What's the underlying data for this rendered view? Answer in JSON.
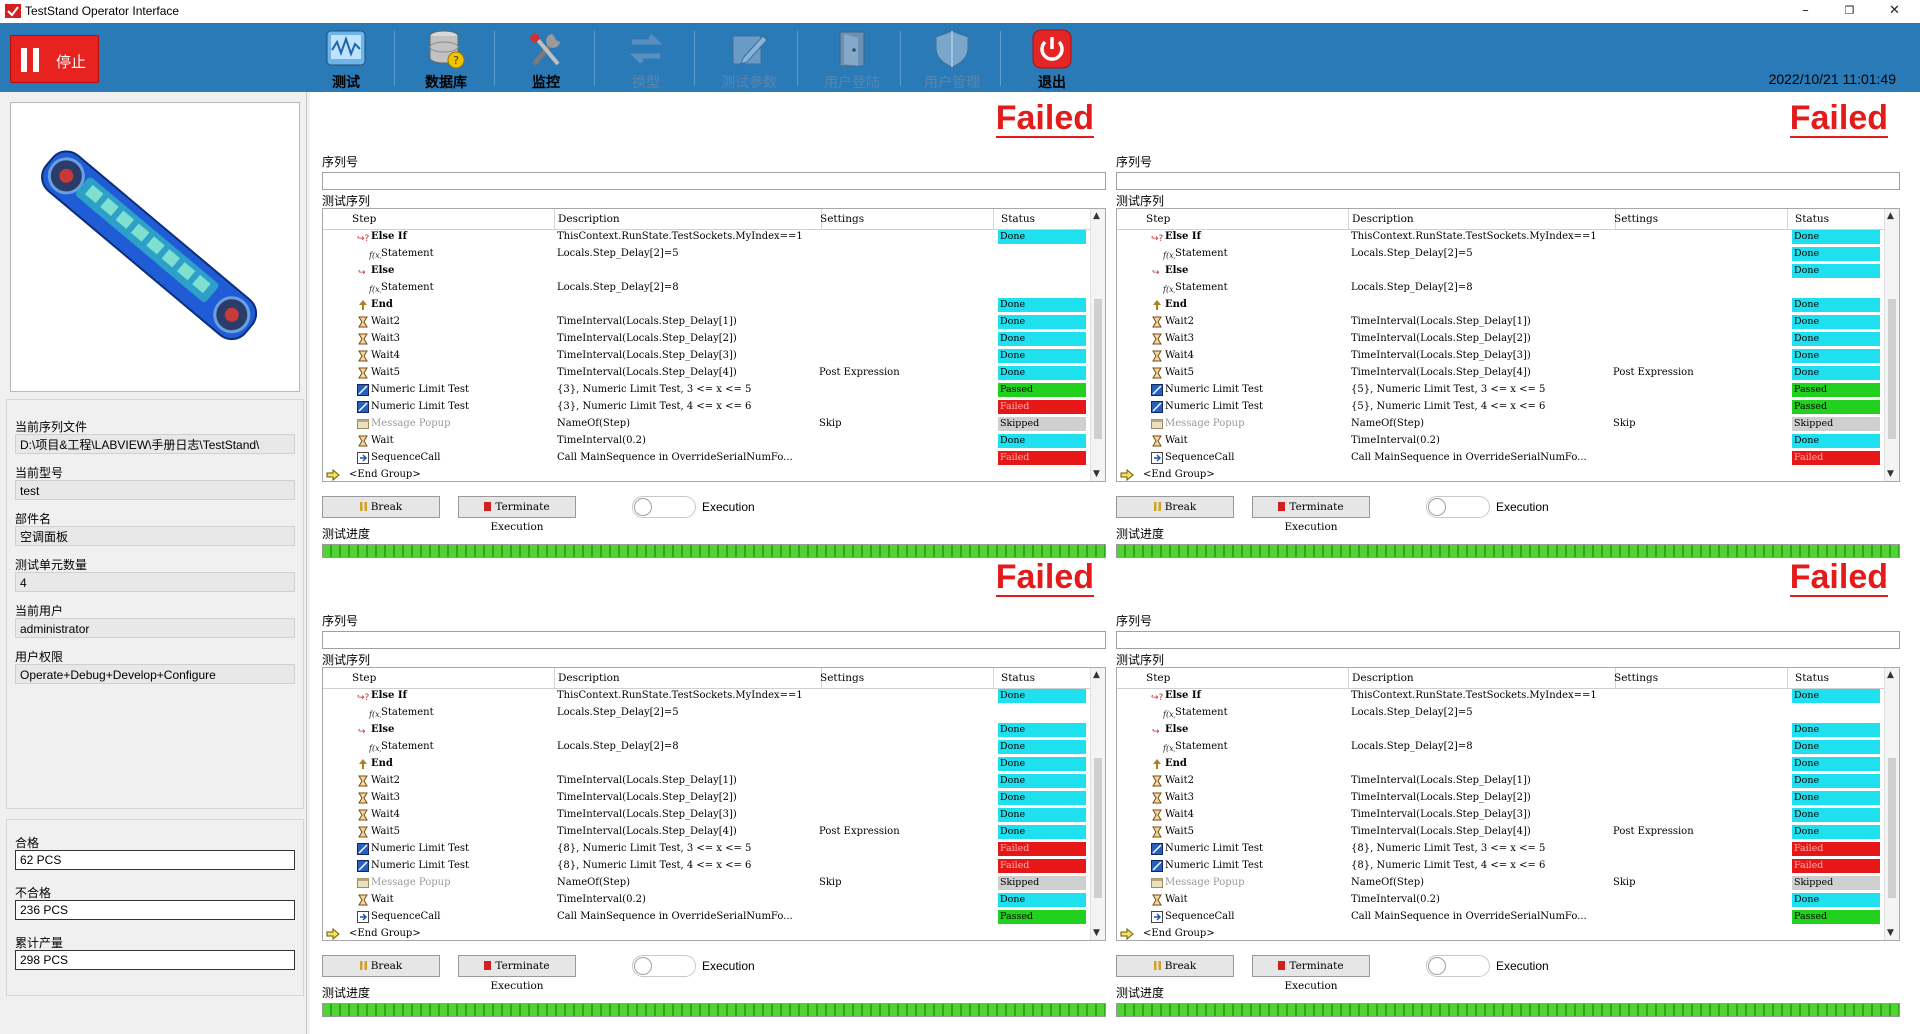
{
  "window": {
    "title": "TestStand Operator Interface",
    "minimize": "–",
    "restore": "❐",
    "close": "✕"
  },
  "toolbar": {
    "stop_label": "停止",
    "buttons": [
      {
        "label": "测试",
        "icon": "waveform-monitor-icon",
        "enabled": true
      },
      {
        "label": "数据库",
        "icon": "database-icon",
        "enabled": true
      },
      {
        "label": "监控",
        "icon": "tools-wrench-icon",
        "enabled": true
      },
      {
        "label": "换型",
        "icon": "swap-arrows-icon",
        "enabled": false
      },
      {
        "label": "测试参数",
        "icon": "edit-document-icon",
        "enabled": false
      },
      {
        "label": "用户登陆",
        "icon": "door-login-icon",
        "enabled": false
      },
      {
        "label": "用户管理",
        "icon": "shield-icon",
        "enabled": false
      },
      {
        "label": "退出",
        "icon": "power-icon",
        "enabled": true
      }
    ],
    "datetime": "2022/10/21 11:01:49"
  },
  "left": {
    "fields": [
      {
        "label": "当前序列文件",
        "value": "D:\\项目&工程\\LABVIEW\\手册日志\\TestStand\\"
      },
      {
        "label": "当前型号",
        "value": "test"
      },
      {
        "label": "部件名",
        "value": "空调面板"
      },
      {
        "label": "测试单元数量",
        "value": "4"
      },
      {
        "label": "当前用户",
        "value": "administrator"
      },
      {
        "label": "用户权限",
        "value": "Operate+Debug+Develop+Configure"
      }
    ],
    "counts": [
      {
        "label": "合格",
        "value": "62 PCS"
      },
      {
        "label": "不合格",
        "value": "236 PCS"
      },
      {
        "label": "累计产量",
        "value": "298 PCS"
      }
    ]
  },
  "colors": {
    "done": "#1ee0ee",
    "passed": "#22d11e",
    "failed": "#e61717",
    "skipped": "#cfcfcf",
    "failed_text": "#e31b1b",
    "toolbar": "#2a7ab8"
  },
  "labels": {
    "result": "Failed",
    "serial": "序列号",
    "sequence": "测试序列",
    "progress": "测试进度",
    "break": "Break",
    "terminate": "Terminate Execution",
    "execution": "Execution",
    "col_step": "Step",
    "col_desc": "Description",
    "col_settings": "Settings",
    "col_status": "Status"
  },
  "units": [
    {
      "rows": [
        {
          "step": "Else If",
          "icon": "else-if",
          "desc": "ThisContext.RunState.TestSockets.MyIndex==1",
          "settings": "",
          "status": "Done"
        },
        {
          "step": "Statement",
          "icon": "statement",
          "desc": "Locals.Step_Delay[2]=5",
          "settings": "",
          "status": ""
        },
        {
          "step": "Else",
          "icon": "else",
          "desc": "",
          "settings": "",
          "status": ""
        },
        {
          "step": "Statement",
          "icon": "statement",
          "desc": "Locals.Step_Delay[2]=8",
          "settings": "",
          "status": ""
        },
        {
          "step": "End",
          "icon": "end",
          "desc": "",
          "settings": "",
          "status": "Done"
        },
        {
          "step": "Wait2",
          "icon": "wait",
          "desc": "TimeInterval(Locals.Step_Delay[1])",
          "settings": "",
          "status": "Done"
        },
        {
          "step": "Wait3",
          "icon": "wait",
          "desc": "TimeInterval(Locals.Step_Delay[2])",
          "settings": "",
          "status": "Done"
        },
        {
          "step": "Wait4",
          "icon": "wait",
          "desc": "TimeInterval(Locals.Step_Delay[3])",
          "settings": "",
          "status": "Done"
        },
        {
          "step": "Wait5",
          "icon": "wait",
          "desc": "TimeInterval(Locals.Step_Delay[4])",
          "settings": "Post Expression",
          "status": "Done"
        },
        {
          "step": "Numeric Limit Test",
          "icon": "numeric",
          "desc": "{3}, Numeric Limit Test,  3 <= x <= 5",
          "settings": "",
          "status": "Passed"
        },
        {
          "step": "Numeric Limit Test",
          "icon": "numeric",
          "desc": "{3}, Numeric Limit Test,  4 <= x <= 6",
          "settings": "",
          "status": "Failed"
        },
        {
          "step": "Message Popup",
          "icon": "popup",
          "desc": "NameOf(Step)",
          "settings": "Skip",
          "status": "Skipped"
        },
        {
          "step": "Wait",
          "icon": "wait",
          "desc": "TimeInterval(0.2)",
          "settings": "",
          "status": "Done"
        },
        {
          "step": "SequenceCall",
          "icon": "seqcall",
          "desc": "Call MainSequence in OverrideSerialNumFo...",
          "settings": "",
          "status": "Failed"
        },
        {
          "step": "<End Group>",
          "icon": "endgroup",
          "desc": "",
          "settings": "",
          "status": ""
        }
      ]
    },
    {
      "rows": [
        {
          "step": "Else If",
          "icon": "else-if",
          "desc": "ThisContext.RunState.TestSockets.MyIndex==1",
          "settings": "",
          "status": "Done"
        },
        {
          "step": "Statement",
          "icon": "statement",
          "desc": "Locals.Step_Delay[2]=5",
          "settings": "",
          "status": "Done"
        },
        {
          "step": "Else",
          "icon": "else",
          "desc": "",
          "settings": "",
          "status": "Done"
        },
        {
          "step": "Statement",
          "icon": "statement",
          "desc": "Locals.Step_Delay[2]=8",
          "settings": "",
          "status": ""
        },
        {
          "step": "End",
          "icon": "end",
          "desc": "",
          "settings": "",
          "status": "Done"
        },
        {
          "step": "Wait2",
          "icon": "wait",
          "desc": "TimeInterval(Locals.Step_Delay[1])",
          "settings": "",
          "status": "Done"
        },
        {
          "step": "Wait3",
          "icon": "wait",
          "desc": "TimeInterval(Locals.Step_Delay[2])",
          "settings": "",
          "status": "Done"
        },
        {
          "step": "Wait4",
          "icon": "wait",
          "desc": "TimeInterval(Locals.Step_Delay[3])",
          "settings": "",
          "status": "Done"
        },
        {
          "step": "Wait5",
          "icon": "wait",
          "desc": "TimeInterval(Locals.Step_Delay[4])",
          "settings": "Post Expression",
          "status": "Done"
        },
        {
          "step": "Numeric Limit Test",
          "icon": "numeric",
          "desc": "{5}, Numeric Limit Test,  3 <= x <= 5",
          "settings": "",
          "status": "Passed"
        },
        {
          "step": "Numeric Limit Test",
          "icon": "numeric",
          "desc": "{5}, Numeric Limit Test,  4 <= x <= 6",
          "settings": "",
          "status": "Passed"
        },
        {
          "step": "Message Popup",
          "icon": "popup",
          "desc": "NameOf(Step)",
          "settings": "Skip",
          "status": "Skipped"
        },
        {
          "step": "Wait",
          "icon": "wait",
          "desc": "TimeInterval(0.2)",
          "settings": "",
          "status": "Done"
        },
        {
          "step": "SequenceCall",
          "icon": "seqcall",
          "desc": "Call MainSequence in OverrideSerialNumFo...",
          "settings": "",
          "status": "Failed"
        },
        {
          "step": "<End Group>",
          "icon": "endgroup",
          "desc": "",
          "settings": "",
          "status": ""
        }
      ]
    },
    {
      "rows": [
        {
          "step": "Else If",
          "icon": "else-if",
          "desc": "ThisContext.RunState.TestSockets.MyIndex==1",
          "settings": "",
          "status": "Done"
        },
        {
          "step": "Statement",
          "icon": "statement",
          "desc": "Locals.Step_Delay[2]=5",
          "settings": "",
          "status": ""
        },
        {
          "step": "Else",
          "icon": "else",
          "desc": "",
          "settings": "",
          "status": "Done"
        },
        {
          "step": "Statement",
          "icon": "statement",
          "desc": "Locals.Step_Delay[2]=8",
          "settings": "",
          "status": "Done"
        },
        {
          "step": "End",
          "icon": "end",
          "desc": "",
          "settings": "",
          "status": "Done"
        },
        {
          "step": "Wait2",
          "icon": "wait",
          "desc": "TimeInterval(Locals.Step_Delay[1])",
          "settings": "",
          "status": "Done"
        },
        {
          "step": "Wait3",
          "icon": "wait",
          "desc": "TimeInterval(Locals.Step_Delay[2])",
          "settings": "",
          "status": "Done"
        },
        {
          "step": "Wait4",
          "icon": "wait",
          "desc": "TimeInterval(Locals.Step_Delay[3])",
          "settings": "",
          "status": "Done"
        },
        {
          "step": "Wait5",
          "icon": "wait",
          "desc": "TimeInterval(Locals.Step_Delay[4])",
          "settings": "Post Expression",
          "status": "Done"
        },
        {
          "step": "Numeric Limit Test",
          "icon": "numeric",
          "desc": "{8}, Numeric Limit Test,  3 <= x <= 5",
          "settings": "",
          "status": "Failed"
        },
        {
          "step": "Numeric Limit Test",
          "icon": "numeric",
          "desc": "{8}, Numeric Limit Test,  4 <= x <= 6",
          "settings": "",
          "status": "Failed"
        },
        {
          "step": "Message Popup",
          "icon": "popup",
          "desc": "NameOf(Step)",
          "settings": "Skip",
          "status": "Skipped"
        },
        {
          "step": "Wait",
          "icon": "wait",
          "desc": "TimeInterval(0.2)",
          "settings": "",
          "status": "Done"
        },
        {
          "step": "SequenceCall",
          "icon": "seqcall",
          "desc": "Call MainSequence in OverrideSerialNumFo...",
          "settings": "",
          "status": "Passed"
        },
        {
          "step": "<End Group>",
          "icon": "endgroup",
          "desc": "",
          "settings": "",
          "status": ""
        }
      ]
    },
    {
      "rows": [
        {
          "step": "Else If",
          "icon": "else-if",
          "desc": "ThisContext.RunState.TestSockets.MyIndex==1",
          "settings": "",
          "status": "Done"
        },
        {
          "step": "Statement",
          "icon": "statement",
          "desc": "Locals.Step_Delay[2]=5",
          "settings": "",
          "status": ""
        },
        {
          "step": "Else",
          "icon": "else",
          "desc": "",
          "settings": "",
          "status": "Done"
        },
        {
          "step": "Statement",
          "icon": "statement",
          "desc": "Locals.Step_Delay[2]=8",
          "settings": "",
          "status": "Done"
        },
        {
          "step": "End",
          "icon": "end",
          "desc": "",
          "settings": "",
          "status": "Done"
        },
        {
          "step": "Wait2",
          "icon": "wait",
          "desc": "TimeInterval(Locals.Step_Delay[1])",
          "settings": "",
          "status": "Done"
        },
        {
          "step": "Wait3",
          "icon": "wait",
          "desc": "TimeInterval(Locals.Step_Delay[2])",
          "settings": "",
          "status": "Done"
        },
        {
          "step": "Wait4",
          "icon": "wait",
          "desc": "TimeInterval(Locals.Step_Delay[3])",
          "settings": "",
          "status": "Done"
        },
        {
          "step": "Wait5",
          "icon": "wait",
          "desc": "TimeInterval(Locals.Step_Delay[4])",
          "settings": "Post Expression",
          "status": "Done"
        },
        {
          "step": "Numeric Limit Test",
          "icon": "numeric",
          "desc": "{8}, Numeric Limit Test,  3 <= x <= 5",
          "settings": "",
          "status": "Failed"
        },
        {
          "step": "Numeric Limit Test",
          "icon": "numeric",
          "desc": "{8}, Numeric Limit Test,  4 <= x <= 6",
          "settings": "",
          "status": "Failed"
        },
        {
          "step": "Message Popup",
          "icon": "popup",
          "desc": "NameOf(Step)",
          "settings": "Skip",
          "status": "Skipped"
        },
        {
          "step": "Wait",
          "icon": "wait",
          "desc": "TimeInterval(0.2)",
          "settings": "",
          "status": "Done"
        },
        {
          "step": "SequenceCall",
          "icon": "seqcall",
          "desc": "Call MainSequence in OverrideSerialNumFo...",
          "settings": "",
          "status": "Passed"
        },
        {
          "step": "<End Group>",
          "icon": "endgroup",
          "desc": "",
          "settings": "",
          "status": ""
        }
      ]
    }
  ]
}
